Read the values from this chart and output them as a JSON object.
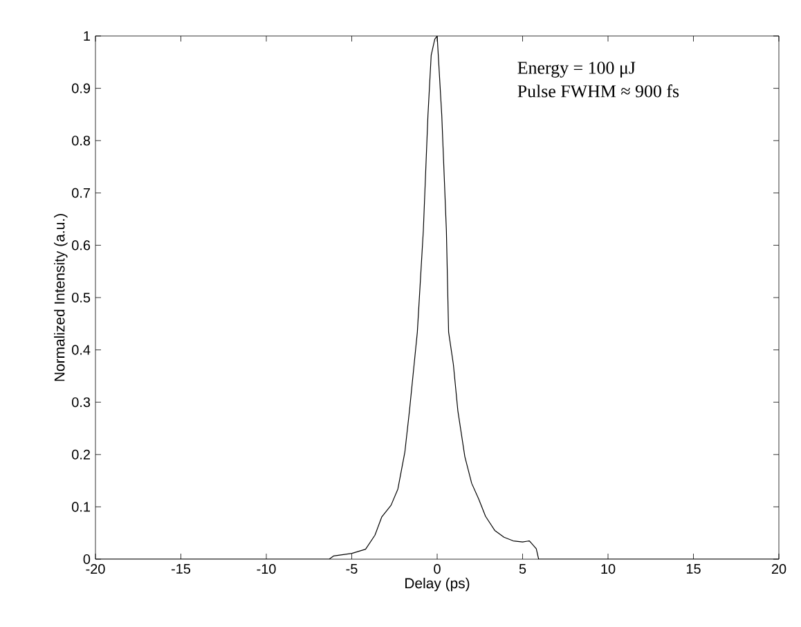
{
  "chart_data": {
    "type": "line",
    "xlabel": "Delay (ps)",
    "ylabel": "Normalized Intensity (a.u.)",
    "annotations": [
      "Energy = 100 μJ",
      "Pulse FWHM ≈ 900 fs"
    ],
    "xlim": [
      -20,
      20
    ],
    "ylim": [
      0,
      1
    ],
    "xticks": [
      -20,
      -15,
      -10,
      -5,
      0,
      5,
      10,
      15,
      20
    ],
    "yticks": [
      0,
      0.1,
      0.2,
      0.3,
      0.4,
      0.5,
      0.6,
      0.7,
      0.8,
      0.9,
      1
    ],
    "grid": false,
    "marker": "none",
    "line_style": "solid",
    "x": [
      -20,
      -6.32,
      -6.07,
      -4.99,
      -4.19,
      -3.64,
      -3.24,
      -2.7,
      -2.3,
      -1.89,
      -1.62,
      -1.35,
      -1.16,
      -0.81,
      -0.54,
      -0.35,
      -0.14,
      0,
      0.27,
      0.54,
      0.67,
      0.95,
      1.21,
      1.62,
      2.02,
      2.43,
      2.83,
      3.37,
      3.91,
      4.45,
      5.0,
      5.4,
      5.8,
      5.94,
      20
    ],
    "series": [
      {
        "color": "#000000",
        "values": [
          0,
          0,
          0.006,
          0.011,
          0.019,
          0.046,
          0.081,
          0.103,
          0.134,
          0.205,
          0.284,
          0.372,
          0.434,
          0.628,
          0.848,
          0.963,
          0.994,
          1,
          0.848,
          0.628,
          0.434,
          0.372,
          0.284,
          0.196,
          0.145,
          0.115,
          0.082,
          0.055,
          0.042,
          0.035,
          0.033,
          0.035,
          0.02,
          0,
          0
        ]
      }
    ]
  }
}
